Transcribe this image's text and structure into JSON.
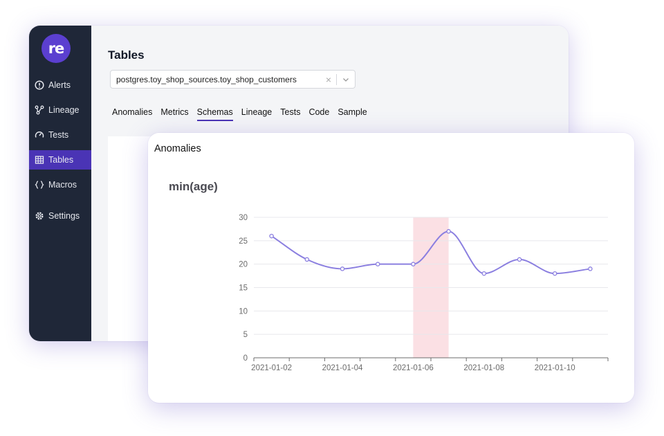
{
  "app": {
    "logo_text": "re",
    "brand_color": "#5b3fd0",
    "sidebar_color": "#1f2738",
    "active_color": "#4a34b5"
  },
  "sidebar": {
    "items": [
      {
        "label": "Alerts",
        "icon": "alert-circle-icon",
        "active": false
      },
      {
        "label": "Lineage",
        "icon": "lineage-icon",
        "active": false
      },
      {
        "label": "Tests",
        "icon": "gauge-icon",
        "active": false
      },
      {
        "label": "Tables",
        "icon": "table-icon",
        "active": true
      },
      {
        "label": "Macros",
        "icon": "braces-icon",
        "active": false
      },
      {
        "label": "Settings",
        "icon": "gear-icon",
        "active": false
      }
    ]
  },
  "main": {
    "title": "Tables",
    "table_select": {
      "value": "postgres.toy_shop_sources.toy_shop_customers",
      "clear_icon": "close-icon",
      "dropdown_icon": "chevron-down-icon"
    },
    "tabs": [
      {
        "label": "Anomalies",
        "active": false
      },
      {
        "label": "Metrics",
        "active": false
      },
      {
        "label": "Schemas",
        "active": true
      },
      {
        "label": "Lineage",
        "active": false
      },
      {
        "label": "Tests",
        "active": false
      },
      {
        "label": "Code",
        "active": false
      },
      {
        "label": "Sample",
        "active": false
      }
    ]
  },
  "card": {
    "title": "Anomalies"
  },
  "chart_data": {
    "type": "line",
    "title": "min(age)",
    "x": [
      "2021-01-02",
      "2021-01-03",
      "2021-01-04",
      "2021-01-05",
      "2021-01-06",
      "2021-01-07",
      "2021-01-08",
      "2021-01-09",
      "2021-01-10",
      "2021-01-11"
    ],
    "series": [
      {
        "values": [
          26,
          21,
          19,
          20,
          20,
          27,
          18,
          21,
          18,
          19
        ],
        "color": "#8b7fe0"
      }
    ],
    "x_tick_labels": [
      "2021-01-02",
      "2021-01-04",
      "2021-01-06",
      "2021-01-08",
      "2021-01-10"
    ],
    "y_ticks": [
      0,
      5,
      10,
      15,
      20,
      25,
      30
    ],
    "ylim": [
      0,
      30
    ],
    "anomaly_highlight": {
      "from": "2021-01-06",
      "to": "2021-01-07",
      "color": "#fbe0e4"
    },
    "grid": true,
    "curve": "smooth"
  }
}
